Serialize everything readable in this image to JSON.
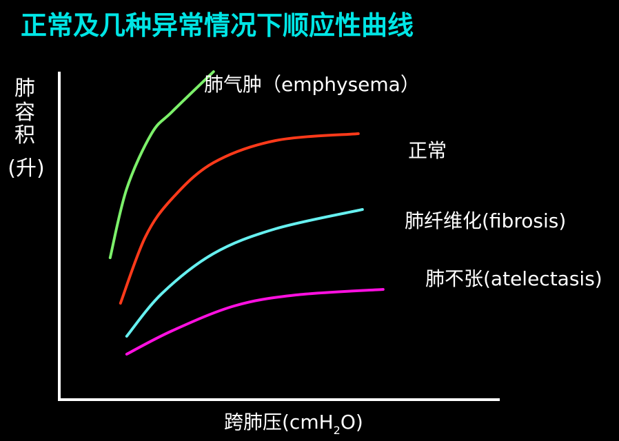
{
  "slide": {
    "title": "正常及几种异常情况下顺应性曲线",
    "title_color": "#00E5E5",
    "background": "#000000",
    "text_color": "#FFFFFF"
  },
  "chart_data": {
    "type": "line",
    "title": "正常及几种异常情况下顺应性曲线",
    "xlabel_main": "跨肺压(cmH",
    "xlabel_sub": "2",
    "xlabel_tail": "O)",
    "ylabel_chars": [
      "肺",
      "容",
      "积"
    ],
    "ylabel_unit": "(升)",
    "axis_color": "#FFFFFF",
    "grid": false,
    "ticks": false,
    "series": [
      {
        "name": "肺气肿（emphysema）",
        "color": "#7CF06A",
        "points": [
          [
            0.123,
            0.412
          ],
          [
            0.163,
            0.612
          ],
          [
            0.223,
            0.772
          ],
          [
            0.273,
            0.836
          ],
          [
            0.373,
            0.952
          ]
        ]
      },
      {
        "name": "正常",
        "color": "#FF3A1A",
        "points": [
          [
            0.148,
            0.28
          ],
          [
            0.208,
            0.472
          ],
          [
            0.273,
            0.584
          ],
          [
            0.373,
            0.688
          ],
          [
            0.523,
            0.752
          ],
          [
            0.723,
            0.772
          ]
        ]
      },
      {
        "name": "肺纤维化(fibrosis)",
        "color": "#66F0F0",
        "points": [
          [
            0.163,
            0.184
          ],
          [
            0.248,
            0.308
          ],
          [
            0.373,
            0.424
          ],
          [
            0.523,
            0.496
          ],
          [
            0.733,
            0.552
          ]
        ]
      },
      {
        "name": "肺不张(atelectasis)",
        "color": "#FF10E0",
        "points": [
          [
            0.163,
            0.132
          ],
          [
            0.273,
            0.2
          ],
          [
            0.423,
            0.272
          ],
          [
            0.573,
            0.304
          ],
          [
            0.783,
            0.32
          ]
        ]
      }
    ]
  }
}
